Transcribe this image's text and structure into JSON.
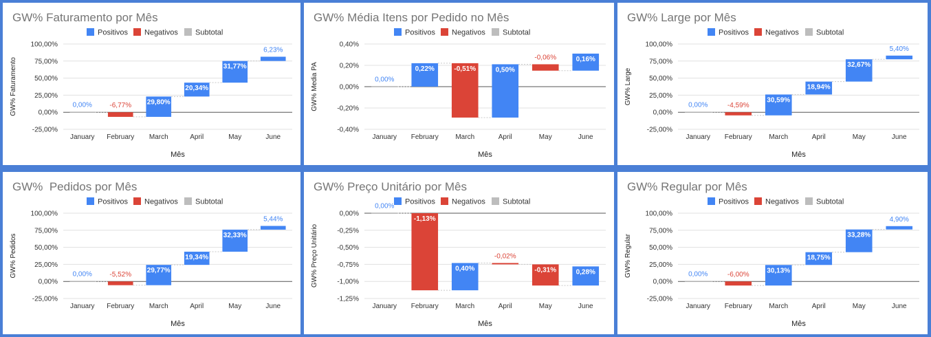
{
  "legend": {
    "positive_label": "Positivos",
    "negative_label": "Negativos",
    "subtotal_label": "Subtotal",
    "positive_color": "#4285f4",
    "negative_color": "#db4437",
    "subtotal_color": "#bdbdbd"
  },
  "chart_data": [
    {
      "type": "waterfall",
      "title": "GW% Faturamento por Mês",
      "xlabel": "Mês",
      "ylabel": "GW% Faturamento",
      "categories": [
        "January",
        "February",
        "March",
        "April",
        "May",
        "June"
      ],
      "values": [
        0.0,
        -6.77,
        29.8,
        20.34,
        31.77,
        6.23
      ],
      "value_labels": [
        "0,00%",
        "-6,77%",
        "29,80%",
        "20,34%",
        "31,77%",
        "6,23%"
      ],
      "yticks": [
        100,
        75,
        50,
        25,
        0,
        -25
      ],
      "ytick_labels": [
        "100,00%",
        "75,00%",
        "50,00%",
        "25,00%",
        "0,00%",
        "-25,00%"
      ],
      "ylim": [
        -25,
        100
      ]
    },
    {
      "type": "waterfall",
      "title": "GW% Média Itens por Pedido no Mês",
      "xlabel": "Mês",
      "ylabel": "GW% Media PA",
      "categories": [
        "January",
        "February",
        "March",
        "April",
        "May",
        "June"
      ],
      "values": [
        0.0,
        0.22,
        -0.51,
        0.5,
        -0.06,
        0.16
      ],
      "value_labels": [
        "0,00%",
        "0,22%",
        "-0,51%",
        "0,50%",
        "-0,06%",
        "0,16%"
      ],
      "yticks": [
        0.4,
        0.2,
        0,
        -0.2,
        -0.4
      ],
      "ytick_labels": [
        "0,40%",
        "0,20%",
        "0,00%",
        "-0,20%",
        "-0,40%"
      ],
      "ylim": [
        -0.4,
        0.4
      ]
    },
    {
      "type": "waterfall",
      "title": "GW% Large por Mês",
      "xlabel": "Mês",
      "ylabel": "GW% Large",
      "categories": [
        "January",
        "February",
        "March",
        "April",
        "May",
        "June"
      ],
      "values": [
        0.0,
        -4.59,
        30.59,
        18.94,
        32.67,
        5.4
      ],
      "value_labels": [
        "0,00%",
        "-4,59%",
        "30,59%",
        "18,94%",
        "32,67%",
        "5,40%"
      ],
      "yticks": [
        100,
        75,
        50,
        25,
        0,
        -25
      ],
      "ytick_labels": [
        "100,00%",
        "75,00%",
        "50,00%",
        "25,00%",
        "0,00%",
        "-25,00%"
      ],
      "ylim": [
        -25,
        100
      ]
    },
    {
      "type": "waterfall",
      "title": "GW%  Pedidos por Mês",
      "xlabel": "Mês",
      "ylabel": "GW%  Pedidos",
      "categories": [
        "January",
        "February",
        "March",
        "April",
        "May",
        "June"
      ],
      "values": [
        0.0,
        -5.52,
        29.77,
        19.34,
        32.33,
        5.44
      ],
      "value_labels": [
        "0,00%",
        "-5,52%",
        "29,77%",
        "19,34%",
        "32,33%",
        "5,44%"
      ],
      "yticks": [
        100,
        75,
        50,
        25,
        0,
        -25
      ],
      "ytick_labels": [
        "100,00%",
        "75,00%",
        "50,00%",
        "25,00%",
        "0,00%",
        "-25,00%"
      ],
      "ylim": [
        -25,
        100
      ]
    },
    {
      "type": "waterfall",
      "title": "GW% Preço Unitário por Mês",
      "xlabel": "Mês",
      "ylabel": "GW% Preço Unitário",
      "categories": [
        "January",
        "February",
        "March",
        "April",
        "May",
        "June"
      ],
      "values": [
        0.0,
        -1.13,
        0.4,
        -0.02,
        -0.31,
        0.28
      ],
      "value_labels": [
        "0,00%",
        "-1,13%",
        "0,40%",
        "-0,02%",
        "-0,31%",
        "0,28%"
      ],
      "yticks": [
        0,
        -0.25,
        -0.5,
        -0.75,
        -1.0,
        -1.25
      ],
      "ytick_labels": [
        "0,00%",
        "-0,25%",
        "-0,50%",
        "-0,75%",
        "-1,00%",
        "-1,25%"
      ],
      "ylim": [
        -1.25,
        0
      ]
    },
    {
      "type": "waterfall",
      "title": "GW% Regular por Mês",
      "xlabel": "Mês",
      "ylabel": "GW% Regular",
      "categories": [
        "January",
        "February",
        "March",
        "April",
        "May",
        "June"
      ],
      "values": [
        0.0,
        -6.0,
        30.13,
        18.75,
        33.28,
        4.9
      ],
      "value_labels": [
        "0,00%",
        "-6,00%",
        "30,13%",
        "18,75%",
        "33,28%",
        "4,90%"
      ],
      "yticks": [
        100,
        75,
        50,
        25,
        0,
        -25
      ],
      "ytick_labels": [
        "100,00%",
        "75,00%",
        "50,00%",
        "25,00%",
        "0,00%",
        "-25,00%"
      ],
      "ylim": [
        -25,
        100
      ]
    }
  ]
}
